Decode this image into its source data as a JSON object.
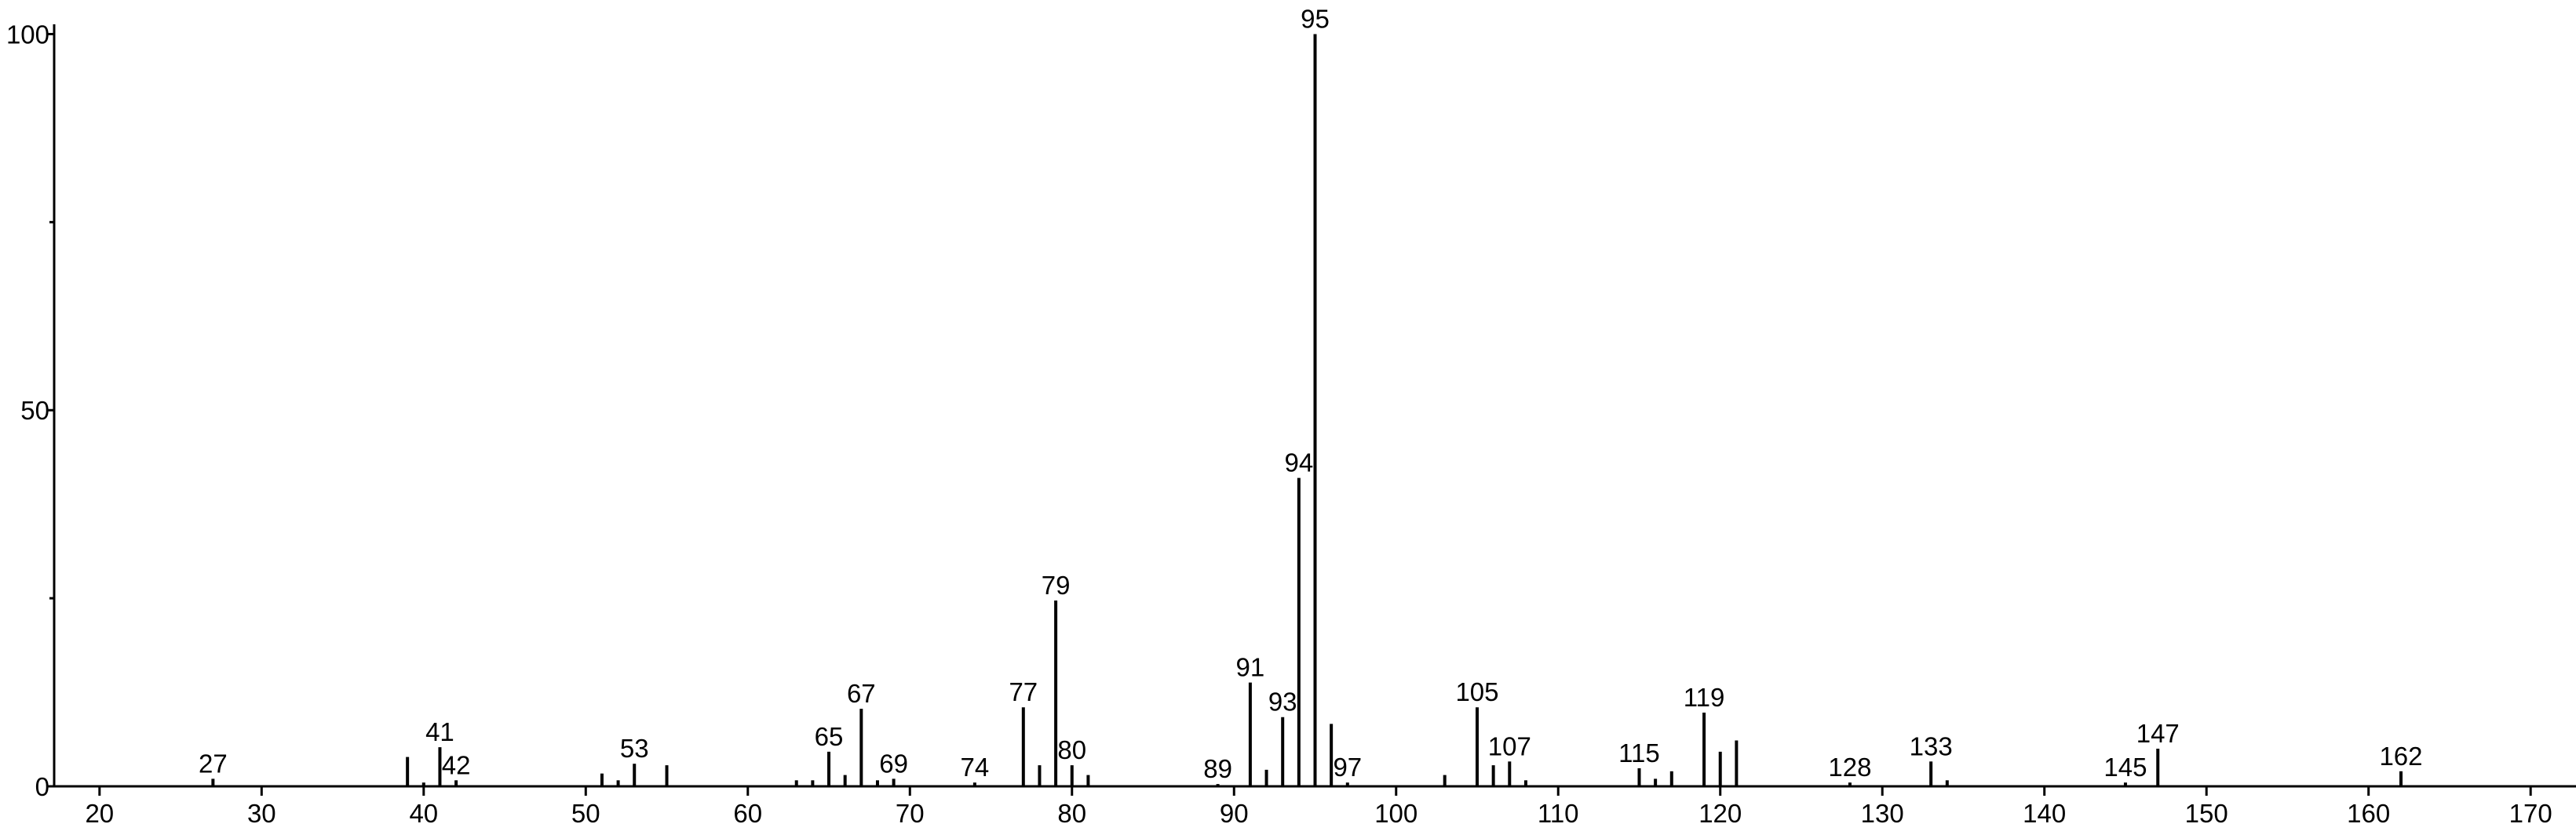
{
  "chart_data": {
    "type": "stem",
    "x": [
      27,
      39,
      40,
      41,
      42,
      51,
      52,
      53,
      55,
      63,
      64,
      65,
      66,
      67,
      68,
      69,
      74,
      77,
      78,
      79,
      80,
      81,
      89,
      91,
      92,
      93,
      94,
      95,
      96,
      97,
      103,
      105,
      106,
      107,
      108,
      115,
      116,
      117,
      119,
      120,
      121,
      128,
      133,
      134,
      145,
      147,
      162
    ],
    "values": [
      1,
      3.9,
      0.5,
      5.2,
      0.8,
      1.7,
      0.8,
      3,
      2.8,
      0.8,
      0.8,
      4.6,
      1.5,
      10.3,
      0.8,
      1,
      0.5,
      10.5,
      2.8,
      24.7,
      2.8,
      1.5,
      0.3,
      13.8,
      2.2,
      9.2,
      41,
      100,
      8.3,
      0.5,
      1.5,
      10.5,
      2.8,
      3.3,
      0.8,
      2.4,
      1,
      2,
      9.8,
      4.6,
      6.1,
      0.5,
      3.3,
      0.8,
      0.5,
      5,
      2
    ],
    "show_label": [
      true,
      false,
      false,
      true,
      true,
      false,
      false,
      true,
      false,
      false,
      false,
      true,
      false,
      true,
      false,
      true,
      true,
      true,
      false,
      true,
      true,
      false,
      true,
      true,
      false,
      true,
      true,
      true,
      false,
      true,
      false,
      true,
      false,
      true,
      false,
      true,
      false,
      false,
      true,
      false,
      false,
      true,
      true,
      false,
      true,
      true,
      true
    ],
    "color": "#000000",
    "xlim": [
      17.2,
      172.8
    ],
    "xticks": [
      20,
      30,
      40,
      50,
      60,
      70,
      80,
      90,
      100,
      110,
      120,
      130,
      140,
      150,
      160,
      170
    ],
    "ylim": [
      0,
      101.3
    ],
    "yticks": [
      0,
      50,
      100
    ],
    "yminorticks": [
      25,
      75
    ]
  }
}
